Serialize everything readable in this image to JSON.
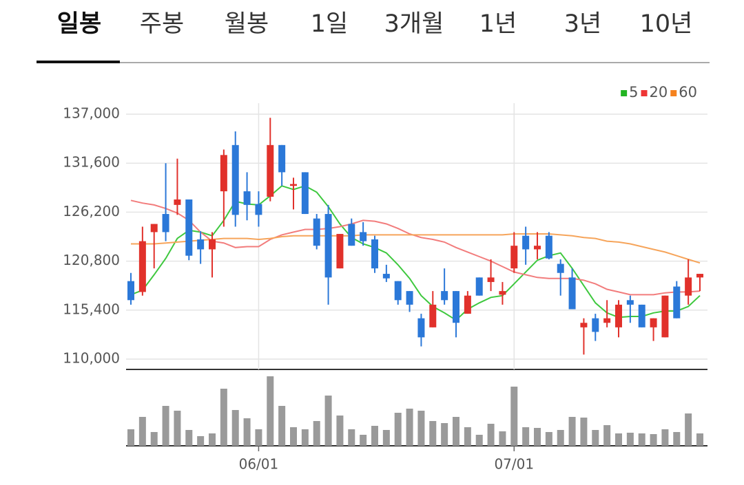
{
  "chart_data": {
    "type": "candlestick",
    "tabs": [
      "일봉",
      "주봉",
      "월봉",
      "1일",
      "3개월",
      "1년",
      "3년",
      "10년"
    ],
    "active_tab": 0,
    "categories": [
      null,
      null,
      null,
      null,
      null,
      null,
      null,
      null,
      null,
      null,
      null,
      "06/01",
      null,
      null,
      null,
      null,
      null,
      null,
      null,
      null,
      null,
      null,
      null,
      null,
      null,
      null,
      null,
      null,
      null,
      null,
      null,
      null,
      null,
      "07/01",
      null,
      null,
      null,
      null,
      null,
      null,
      null,
      null,
      null,
      null,
      null,
      null,
      null,
      null,
      null,
      null
    ],
    "open": [
      118600,
      117400,
      124000,
      126000,
      127000,
      127600,
      123200,
      122100,
      128500,
      133600,
      128500,
      127100,
      127900,
      133600,
      129100,
      130600,
      125500,
      126000,
      120000,
      124900,
      124000,
      123200,
      119400,
      118600,
      117500,
      114500,
      113500,
      117500,
      117500,
      115000,
      119000,
      118500,
      117100,
      120000,
      123600,
      122100,
      123600,
      120500,
      119000,
      113500,
      114500,
      114000,
      113500,
      116500,
      116000,
      113500,
      112400,
      118000,
      117000,
      119000
    ],
    "high": [
      119500,
      124600,
      124900,
      131600,
      132100,
      127600,
      124100,
      124000,
      133100,
      135100,
      130600,
      128500,
      136600,
      133600,
      130000,
      130600,
      126000,
      127000,
      123800,
      125500,
      125100,
      123600,
      120400,
      118600,
      117500,
      115000,
      117500,
      120000,
      117500,
      117500,
      119000,
      121000,
      118500,
      124000,
      124600,
      124000,
      124000,
      121000,
      120000,
      114500,
      115000,
      116500,
      116500,
      117000,
      116000,
      114500,
      117000,
      118600,
      121000,
      119400
    ],
    "low": [
      116000,
      117000,
      120000,
      123000,
      125900,
      120900,
      120500,
      119000,
      124600,
      124600,
      125300,
      124600,
      127400,
      129100,
      126500,
      126000,
      122100,
      116000,
      120000,
      122500,
      122500,
      119500,
      118500,
      116000,
      115200,
      111400,
      113500,
      116000,
      112400,
      115000,
      117000,
      117500,
      116000,
      119500,
      120400,
      121000,
      121000,
      117000,
      115500,
      110500,
      112000,
      113500,
      112400,
      114000,
      113500,
      112000,
      112400,
      114500,
      116000,
      117500
    ],
    "close": [
      116500,
      123000,
      124900,
      124000,
      127600,
      121400,
      122100,
      123200,
      132500,
      125900,
      127000,
      125900,
      133600,
      130600,
      129300,
      126000,
      122500,
      119000,
      123800,
      122500,
      123000,
      120000,
      118900,
      116500,
      116000,
      112400,
      116000,
      116500,
      114000,
      117000,
      117000,
      119000,
      117500,
      122500,
      122100,
      122500,
      121100,
      119500,
      115500,
      114000,
      113000,
      114500,
      116000,
      116000,
      113500,
      114500,
      117000,
      114500,
      119000,
      119400
    ],
    "up_color": "#e1312b",
    "down_color": "#2b78d8",
    "ylim": [
      110000,
      137000
    ],
    "yticks": [
      {
        "value": 110000,
        "label": "110,000"
      },
      {
        "value": 115400,
        "label": "115,400"
      },
      {
        "value": 120800,
        "label": "120,800"
      },
      {
        "value": 126200,
        "label": "126,200"
      },
      {
        "value": 131600,
        "label": "131,600"
      },
      {
        "value": 137000,
        "label": "137,000"
      }
    ],
    "grid": true,
    "moving_averages": [
      {
        "name": "5",
        "color": "#3ec83e",
        "legend_color": "#22b422",
        "values": [
          117100,
          117600,
          119300,
          121100,
          123300,
          124200,
          124000,
          123600,
          125300,
          127400,
          127100,
          127000,
          128000,
          129100,
          128700,
          129100,
          128400,
          126800,
          124900,
          123400,
          122700,
          122300,
          121700,
          120400,
          118900,
          117000,
          115800,
          115100,
          114300,
          115500,
          116200,
          116800,
          117000,
          118300,
          119600,
          120900,
          121400,
          121700,
          120000,
          118100,
          116200,
          115100,
          114600,
          114700,
          114700,
          115100,
          115300,
          115300,
          115800,
          117000
        ]
      },
      {
        "name": "20",
        "color": "#f27c7c",
        "legend_color": "#ee3535",
        "values": [
          127500,
          127200,
          127000,
          126600,
          126100,
          125300,
          124000,
          123000,
          122800,
          122300,
          122400,
          122400,
          123200,
          123700,
          124000,
          124300,
          124300,
          124400,
          124600,
          124900,
          125300,
          125200,
          124900,
          124400,
          123800,
          123400,
          123200,
          122900,
          122300,
          121800,
          121300,
          120800,
          120200,
          119600,
          119300,
          119000,
          118900,
          118900,
          118900,
          118700,
          118300,
          117700,
          117400,
          117100,
          117100,
          117100,
          117300,
          117400,
          117400,
          117500
        ]
      },
      {
        "name": "60",
        "color": "#f6a45a",
        "legend_color": "#f5821e",
        "values": [
          122700,
          122700,
          122700,
          122800,
          122900,
          123000,
          123100,
          123200,
          123300,
          123300,
          123300,
          123200,
          123300,
          123500,
          123600,
          123600,
          123600,
          123600,
          123600,
          123600,
          123700,
          123700,
          123700,
          123700,
          123700,
          123700,
          123700,
          123700,
          123700,
          123700,
          123700,
          123700,
          123700,
          123800,
          123800,
          123800,
          123800,
          123700,
          123600,
          123400,
          123300,
          123000,
          122900,
          122700,
          122400,
          122100,
          121800,
          121400,
          121000,
          120600
        ]
      }
    ],
    "volume": {
      "color": "#9a9a9a",
      "ylim": [
        0,
        111
      ],
      "values": [
        24,
        42,
        20,
        58,
        51,
        23,
        14,
        18,
        83,
        52,
        40,
        24,
        101,
        58,
        27,
        24,
        36,
        73,
        44,
        24,
        16,
        29,
        23,
        48,
        54,
        51,
        36,
        33,
        42,
        27,
        16,
        32,
        21,
        86,
        27,
        26,
        20,
        23,
        42,
        41,
        23,
        30,
        18,
        19,
        18,
        17,
        24,
        20,
        47,
        18
      ]
    }
  }
}
